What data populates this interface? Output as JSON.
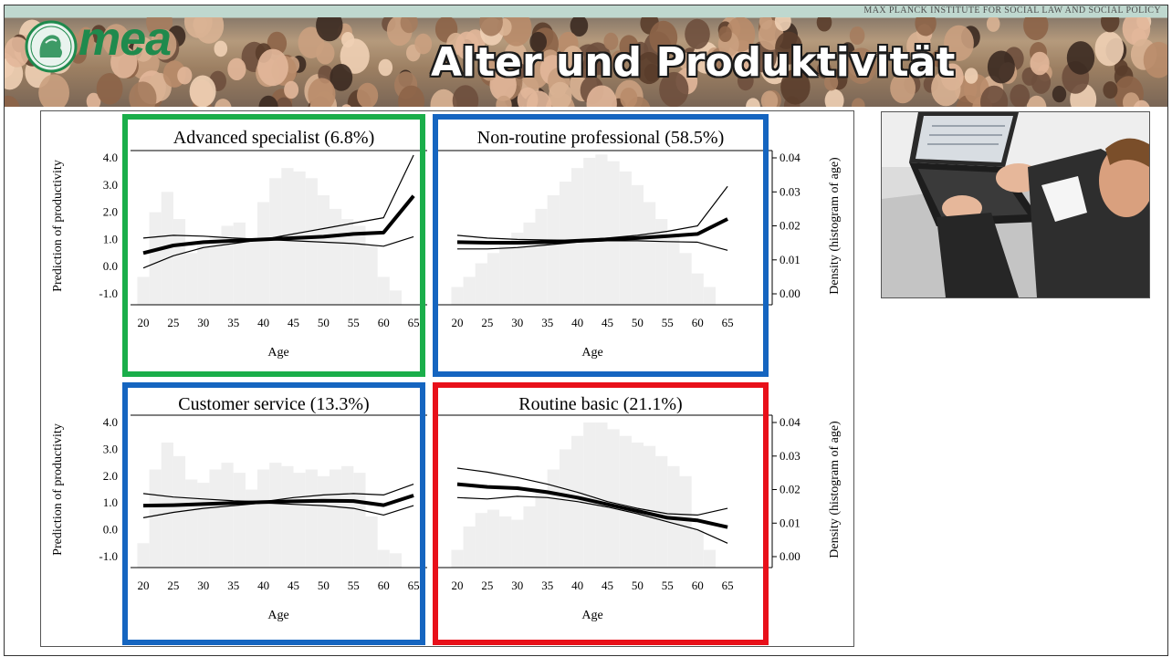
{
  "header": {
    "institute": "MAX PLANCK INSTITUTE FOR SOCIAL LAW AND SOCIAL POLICY",
    "logo_text": "mea",
    "title": "Alter und Produktivität"
  },
  "colors": {
    "green": "#1aae4a",
    "blue": "#1565c0",
    "red": "#e8101a",
    "histogram": "#efefef"
  },
  "chart_data": [
    {
      "type": "line",
      "title": "Advanced specialist (6.8%)",
      "frame_color": "green",
      "xlabel": "Age",
      "ylabel": "Prediction of productivity",
      "y2label": "Density (histogram of age)",
      "xticks": [
        20,
        25,
        30,
        35,
        40,
        45,
        50,
        55,
        60,
        65
      ],
      "yticks": [
        -1.0,
        0.0,
        1.0,
        2.0,
        3.0,
        4.0
      ],
      "y2ticks": [
        0.0,
        0.01,
        0.02,
        0.03,
        0.04
      ],
      "ylim": [
        -1.0,
        4.0
      ],
      "y2lim": [
        0.0,
        0.04
      ],
      "x": [
        20,
        25,
        30,
        35,
        40,
        45,
        50,
        55,
        60,
        65
      ],
      "series": [
        {
          "values": [
            0.5,
            0.78,
            0.9,
            0.95,
            1.0,
            1.05,
            1.1,
            1.2,
            1.25,
            2.6
          ]
        },
        {
          "values": [
            1.05,
            1.15,
            1.12,
            1.05,
            1.0,
            1.2,
            1.4,
            1.6,
            1.8,
            4.1
          ]
        },
        {
          "values": [
            -0.05,
            0.4,
            0.7,
            0.85,
            1.0,
            0.95,
            0.9,
            0.85,
            0.75,
            1.1
          ]
        }
      ],
      "histogram": {
        "x": [
          20,
          22,
          24,
          26,
          28,
          30,
          32,
          34,
          36,
          38,
          40,
          42,
          44,
          46,
          48,
          50,
          52,
          54,
          56,
          58,
          60,
          62
        ],
        "values": [
          0.005,
          0.024,
          0.03,
          0.022,
          0.012,
          0.015,
          0.017,
          0.02,
          0.021,
          0.016,
          0.027,
          0.034,
          0.037,
          0.036,
          0.034,
          0.029,
          0.025,
          0.022,
          0.02,
          0.014,
          0.005,
          0.001
        ]
      }
    },
    {
      "type": "line",
      "title": "Non-routine professional (58.5%)",
      "frame_color": "blue",
      "xlabel": "Age",
      "ylabel": "Prediction of productivity",
      "y2label": "Density (histogram of age)",
      "xticks": [
        20,
        25,
        30,
        35,
        40,
        45,
        50,
        55,
        60,
        65
      ],
      "yticks": [
        -1.0,
        0.0,
        1.0,
        2.0,
        3.0,
        4.0
      ],
      "y2ticks": [
        0.0,
        0.01,
        0.02,
        0.03,
        0.04
      ],
      "ylim": [
        -1.0,
        4.0
      ],
      "y2lim": [
        0.0,
        0.04
      ],
      "x": [
        20,
        25,
        30,
        35,
        40,
        45,
        50,
        55,
        60,
        65
      ],
      "series": [
        {
          "values": [
            0.9,
            0.88,
            0.88,
            0.9,
            0.95,
            1.0,
            1.05,
            1.12,
            1.2,
            1.75
          ]
        },
        {
          "values": [
            1.15,
            1.05,
            1.0,
            0.98,
            0.97,
            1.05,
            1.15,
            1.3,
            1.5,
            2.95
          ]
        },
        {
          "values": [
            0.65,
            0.65,
            0.7,
            0.8,
            0.9,
            0.95,
            0.95,
            0.92,
            0.9,
            0.6
          ]
        }
      ],
      "histogram": {
        "x": [
          20,
          22,
          24,
          26,
          28,
          30,
          32,
          34,
          36,
          38,
          40,
          42,
          44,
          46,
          48,
          50,
          52,
          54,
          56,
          58,
          60,
          62
        ],
        "values": [
          0.002,
          0.005,
          0.009,
          0.012,
          0.015,
          0.018,
          0.021,
          0.025,
          0.029,
          0.033,
          0.037,
          0.04,
          0.041,
          0.039,
          0.036,
          0.032,
          0.027,
          0.022,
          0.017,
          0.012,
          0.006,
          0.002
        ]
      }
    },
    {
      "type": "line",
      "title": "Customer service (13.3%)",
      "frame_color": "blue",
      "xlabel": "Age",
      "ylabel": "Prediction of productivity",
      "y2label": "Density (histogram of age)",
      "xticks": [
        20,
        25,
        30,
        35,
        40,
        45,
        50,
        55,
        60,
        65
      ],
      "yticks": [
        -1.0,
        0.0,
        1.0,
        2.0,
        3.0,
        4.0
      ],
      "y2ticks": [
        0.0,
        0.01,
        0.02,
        0.03,
        0.04
      ],
      "ylim": [
        -1.0,
        4.0
      ],
      "y2lim": [
        0.0,
        0.04
      ],
      "x": [
        20,
        25,
        30,
        35,
        40,
        45,
        50,
        55,
        60,
        65
      ],
      "series": [
        {
          "values": [
            0.9,
            0.92,
            0.96,
            1.0,
            1.03,
            1.06,
            1.08,
            1.07,
            0.92,
            1.28
          ]
        },
        {
          "values": [
            1.35,
            1.22,
            1.15,
            1.08,
            1.05,
            1.2,
            1.3,
            1.35,
            1.3,
            1.7
          ]
        },
        {
          "values": [
            0.45,
            0.65,
            0.8,
            0.9,
            1.0,
            0.95,
            0.9,
            0.8,
            0.55,
            0.9
          ]
        }
      ],
      "histogram": {
        "x": [
          20,
          22,
          24,
          26,
          28,
          30,
          32,
          34,
          36,
          38,
          40,
          42,
          44,
          46,
          48,
          50,
          52,
          54,
          56,
          58,
          60,
          62
        ],
        "values": [
          0.004,
          0.026,
          0.034,
          0.03,
          0.023,
          0.022,
          0.026,
          0.028,
          0.025,
          0.02,
          0.026,
          0.028,
          0.027,
          0.025,
          0.026,
          0.024,
          0.026,
          0.027,
          0.025,
          0.012,
          0.002,
          0.001
        ]
      }
    },
    {
      "type": "line",
      "title": "Routine basic (21.1%)",
      "frame_color": "red",
      "xlabel": "Age",
      "ylabel": "Prediction of productivity",
      "y2label": "Density (histogram of age)",
      "xticks": [
        20,
        25,
        30,
        35,
        40,
        45,
        50,
        55,
        60,
        65
      ],
      "yticks": [
        -1.0,
        0.0,
        1.0,
        2.0,
        3.0,
        4.0
      ],
      "y2ticks": [
        0.0,
        0.01,
        0.02,
        0.03,
        0.04
      ],
      "ylim": [
        -1.0,
        4.0
      ],
      "y2lim": [
        0.0,
        0.04
      ],
      "x": [
        20,
        25,
        30,
        35,
        40,
        45,
        50,
        55,
        60,
        65
      ],
      "series": [
        {
          "values": [
            1.7,
            1.6,
            1.55,
            1.4,
            1.2,
            0.95,
            0.7,
            0.45,
            0.35,
            0.1
          ]
        },
        {
          "values": [
            2.3,
            2.15,
            1.95,
            1.7,
            1.4,
            1.05,
            0.8,
            0.6,
            0.55,
            0.8
          ]
        },
        {
          "values": [
            1.2,
            1.15,
            1.25,
            1.2,
            1.05,
            0.85,
            0.6,
            0.3,
            0.0,
            -0.5
          ]
        }
      ],
      "histogram": {
        "x": [
          20,
          22,
          24,
          26,
          28,
          30,
          32,
          34,
          36,
          38,
          40,
          42,
          44,
          46,
          48,
          50,
          52,
          54,
          56,
          58,
          60,
          62
        ],
        "values": [
          0.002,
          0.009,
          0.013,
          0.014,
          0.012,
          0.011,
          0.015,
          0.02,
          0.026,
          0.032,
          0.036,
          0.04,
          0.04,
          0.038,
          0.036,
          0.034,
          0.033,
          0.03,
          0.027,
          0.024,
          0.008,
          0.002
        ]
      }
    }
  ]
}
